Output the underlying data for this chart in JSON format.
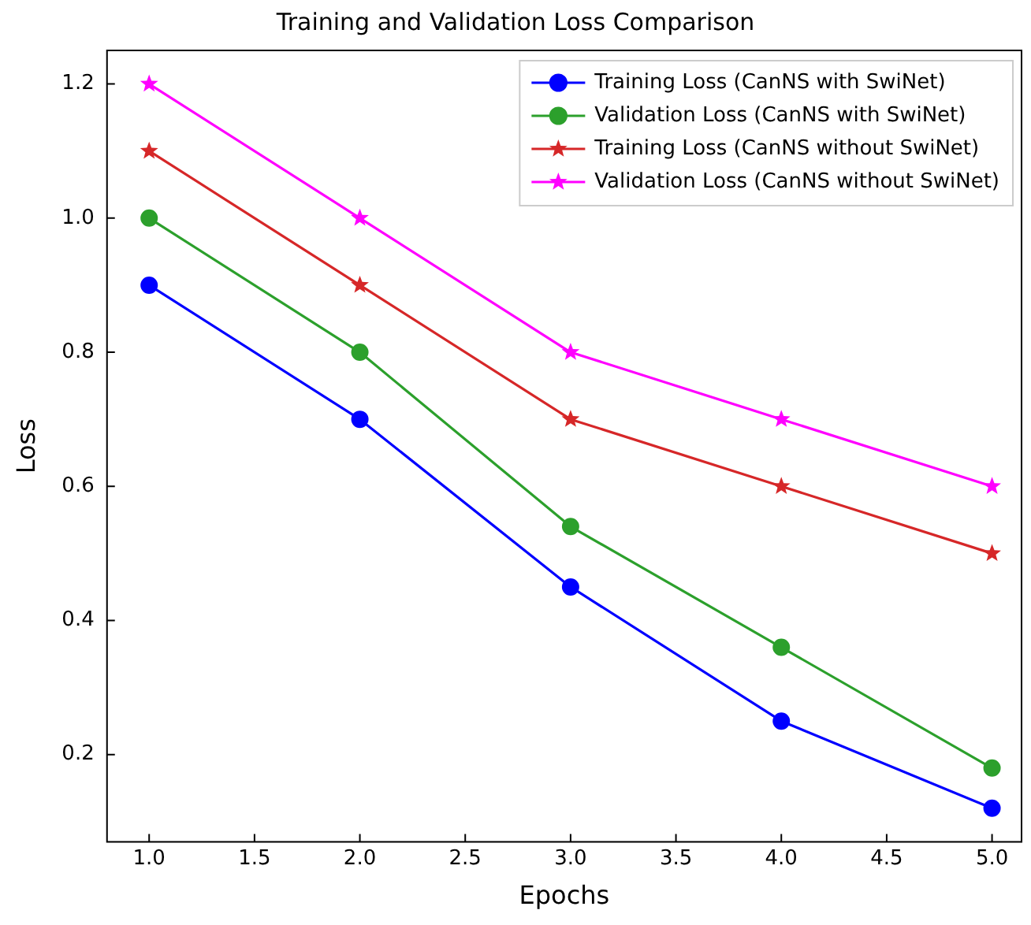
{
  "chart_data": {
    "type": "line",
    "title": "Training and Validation Loss Comparison",
    "xlabel": "Epochs",
    "ylabel": "Loss",
    "x": [
      1,
      2,
      3,
      4,
      5
    ],
    "series": [
      {
        "name": "Training Loss (CanNS with SwiNet)",
        "color": "#0000ff",
        "marker": "circle",
        "values": [
          0.9,
          0.7,
          0.45,
          0.25,
          0.12
        ]
      },
      {
        "name": "Validation Loss (CanNS with SwiNet)",
        "color": "#2ca02c",
        "marker": "circle",
        "values": [
          1.0,
          0.8,
          0.54,
          0.36,
          0.18
        ]
      },
      {
        "name": "Training Loss (CanNS without SwiNet)",
        "color": "#d62728",
        "marker": "star",
        "values": [
          1.1,
          0.9,
          0.7,
          0.6,
          0.5
        ]
      },
      {
        "name": "Validation Loss (CanNS without SwiNet)",
        "color": "#ff00ff",
        "marker": "star",
        "values": [
          1.2,
          1.0,
          0.8,
          0.7,
          0.6
        ]
      }
    ],
    "xlim": [
      0.8,
      5.14
    ],
    "xticks": [
      {
        "value": 1,
        "label": "1.0"
      },
      {
        "value": 1.5,
        "label": "1.5"
      },
      {
        "value": 2,
        "label": "2.0"
      },
      {
        "value": 2.5,
        "label": "2.5"
      },
      {
        "value": 3,
        "label": "3.0"
      },
      {
        "value": 3.5,
        "label": "3.5"
      },
      {
        "value": 4,
        "label": "4.0"
      },
      {
        "value": 4.5,
        "label": "4.5"
      },
      {
        "value": 5,
        "label": "5.0"
      }
    ],
    "ylim": [
      0.07,
      1.25
    ],
    "yticks": [
      0.2,
      0.4,
      0.6,
      0.8,
      {
        "value": 1,
        "label": "1.0"
      },
      1.2
    ],
    "grid": false,
    "legend": "top right",
    "line_style": "solid"
  }
}
